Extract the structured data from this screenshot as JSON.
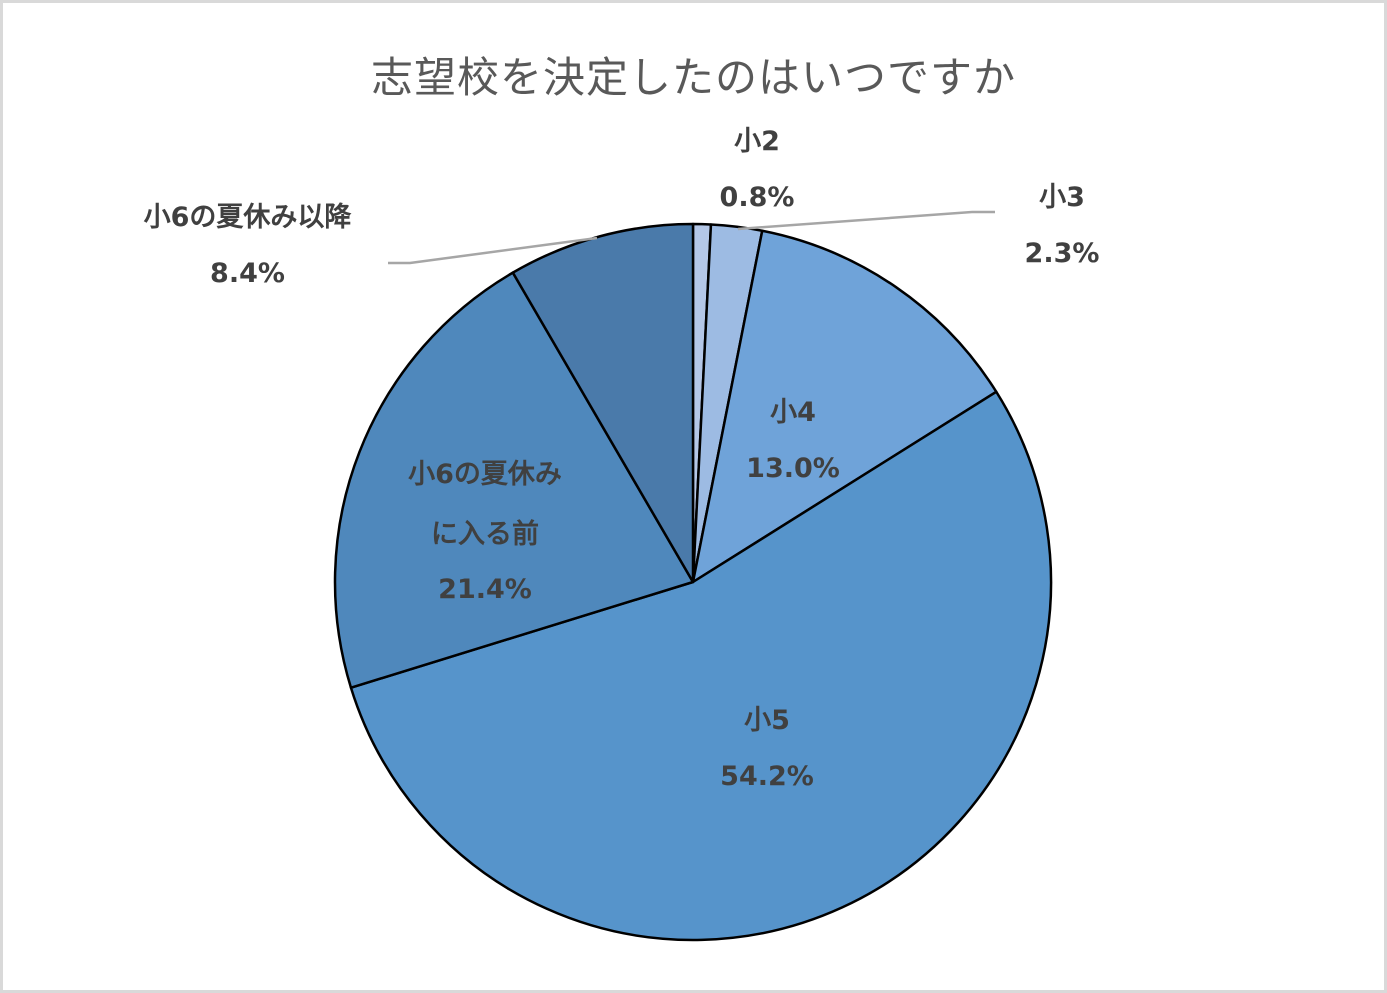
{
  "chart_data": {
    "type": "pie",
    "title": "志望校を決定したのはいつですか",
    "start_angle_deg": 0,
    "direction": "clockwise",
    "slices": [
      {
        "label": "小2",
        "value": 0.8,
        "value_label": "0.8%",
        "color": "#b4c7e7"
      },
      {
        "label": "小3",
        "value": 2.3,
        "value_label": "2.3%",
        "color": "#9dbbe3"
      },
      {
        "label": "小4",
        "value": 13.0,
        "value_label": "13.0%",
        "color": "#6fa3d9"
      },
      {
        "label": "小5",
        "value": 54.2,
        "value_label": "54.2%",
        "color": "#5694cb"
      },
      {
        "label": "小6の夏休みに入る前",
        "value": 21.4,
        "value_label": "21.4%",
        "color": "#4f88bc"
      },
      {
        "label": "小6の夏休み以降",
        "value": 8.4,
        "value_label": "8.4%",
        "color": "#4a7aaa"
      }
    ],
    "legend": "none",
    "data_labels": "category name and percentage"
  },
  "labels": {
    "s2_name": "小2",
    "s2_pct": "0.8%",
    "s3_name": "小3",
    "s3_pct": "2.3%",
    "s4_name": "小4",
    "s4_pct": "13.0%",
    "s5_name": "小5",
    "s5_pct": "54.2%",
    "s6a_line1": "小6の夏休み",
    "s6a_line2": "に入る前",
    "s6a_pct": "21.4%",
    "s6b_name": "小6の夏休み以降",
    "s6b_pct": "8.4%"
  }
}
